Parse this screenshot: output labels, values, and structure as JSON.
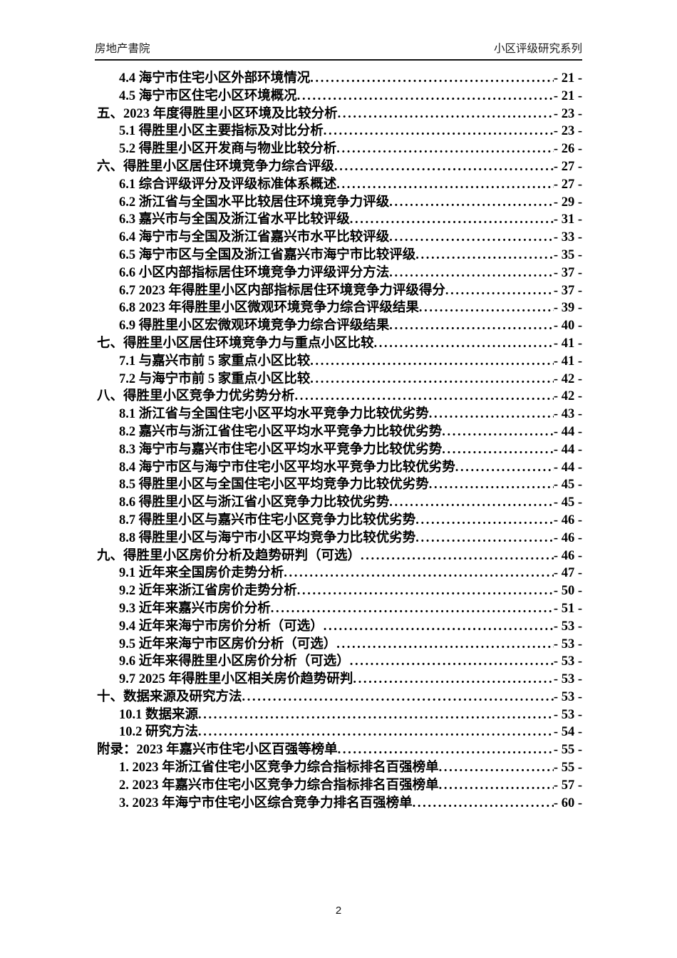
{
  "header": {
    "left": "房地产書院",
    "right": "小区评级研究系列"
  },
  "footer": {
    "page_number": "2"
  },
  "toc": {
    "entries": [
      {
        "level": 1,
        "label": "4.4 海宁市住宅小区外部环境情况",
        "page": "- 21 -"
      },
      {
        "level": 1,
        "label": "4.5 海宁市区住宅小区环境概况",
        "page": "- 21 -"
      },
      {
        "level": 0,
        "label": "五、2023 年度得胜里小区环境及比较分析",
        "page": "- 23 -"
      },
      {
        "level": 1,
        "label": "5.1 得胜里小区主要指标及对比分析",
        "page": "- 23 -"
      },
      {
        "level": 1,
        "label": "5.2 得胜里小区开发商与物业比较分析",
        "page": "- 26 -"
      },
      {
        "level": 0,
        "label": "六、得胜里小区居住环境竞争力综合评级",
        "page": "- 27 -"
      },
      {
        "level": 1,
        "label": "6.1 综合评级评分及评级标准体系概述",
        "page": "- 27 -"
      },
      {
        "level": 1,
        "label": "6.2 浙江省与全国水平比较居住环境竞争力评级",
        "page": "- 29 -"
      },
      {
        "level": 1,
        "label": "6.3 嘉兴市与全国及浙江省水平比较评级",
        "page": "- 31 -"
      },
      {
        "level": 1,
        "label": "6.4 海宁市与全国及浙江省嘉兴市水平比较评级",
        "page": "- 33 -"
      },
      {
        "level": 1,
        "label": "6.5 海宁市区与全国及浙江省嘉兴市海宁市比较评级",
        "page": "- 35 -"
      },
      {
        "level": 1,
        "label": "6.6 小区内部指标居住环境竞争力评级评分方法",
        "page": "- 37 -"
      },
      {
        "level": 1,
        "label": "6.7 2023 年得胜里小区内部指标居住环境竞争力评级得分",
        "page": "- 37 -"
      },
      {
        "level": 1,
        "label": "6.8 2023 年得胜里小区微观环境竞争力综合评级结果",
        "page": "- 39 -"
      },
      {
        "level": 1,
        "label": "6.9 得胜里小区宏微观环境竞争力综合评级结果",
        "page": "- 40 -"
      },
      {
        "level": 0,
        "label": "七、得胜里小区居住环境竞争力与重点小区比较",
        "page": "- 41 -"
      },
      {
        "level": 1,
        "label": "7.1 与嘉兴市前 5 家重点小区比较",
        "page": "- 41 -"
      },
      {
        "level": 1,
        "label": "7.2 与海宁市前 5 家重点小区比较",
        "page": "- 42 -"
      },
      {
        "level": 0,
        "label": "八、得胜里小区竞争力优劣势分析",
        "page": "- 42 -"
      },
      {
        "level": 1,
        "label": "8.1 浙江省与全国住宅小区平均水平竞争力比较优劣势",
        "page": "- 43 -"
      },
      {
        "level": 1,
        "label": "8.2 嘉兴市与浙江省住宅小区平均水平竞争力比较优劣势",
        "page": "- 44 -"
      },
      {
        "level": 1,
        "label": "8.3 海宁市与嘉兴市住宅小区平均水平竞争力比较优劣势",
        "page": "- 44 -"
      },
      {
        "level": 1,
        "label": "8.4 海宁市区与海宁市住宅小区平均水平竞争力比较优劣势",
        "page": "- 44 -"
      },
      {
        "level": 1,
        "label": "8.5 得胜里小区与全国住宅小区平均竞争力比较优劣势",
        "page": "- 45 -"
      },
      {
        "level": 1,
        "label": "8.6 得胜里小区与浙江省小区竞争力比较优劣势",
        "page": "- 45 -"
      },
      {
        "level": 1,
        "label": "8.7 得胜里小区与嘉兴市住宅小区竞争力比较优劣势",
        "page": "- 46 -"
      },
      {
        "level": 1,
        "label": "8.8 得胜里小区与海宁市小区平均竞争力比较优劣势",
        "page": "- 46 -"
      },
      {
        "level": 0,
        "label": "九、得胜里小区房价分析及趋势研判（可选）",
        "page": "- 46 -"
      },
      {
        "level": 1,
        "label": "9.1 近年来全国房价走势分析",
        "page": "- 47 -"
      },
      {
        "level": 1,
        "label": "9.2 近年来浙江省房价走势分析",
        "page": "- 50 -"
      },
      {
        "level": 1,
        "label": "9.3 近年来嘉兴市房价分析",
        "page": "- 51 -"
      },
      {
        "level": 1,
        "label": "9.4 近年来海宁市房价分析（可选）",
        "page": "- 53 -"
      },
      {
        "level": 1,
        "label": "9.5 近年来海宁市区房价分析（可选）",
        "page": "- 53 -"
      },
      {
        "level": 1,
        "label": "9.6 近年来得胜里小区房价分析（可选）",
        "page": "- 53 -"
      },
      {
        "level": 1,
        "label": "9.7 2025 年得胜里小区相关房价趋势研判",
        "page": "- 53 -"
      },
      {
        "level": 0,
        "label": "十、数据来源及研究方法",
        "page": "- 53 -"
      },
      {
        "level": 1,
        "label": "10.1 数据来源",
        "page": "- 53 -"
      },
      {
        "level": 1,
        "label": "10.2 研究方法",
        "page": "- 54 -"
      },
      {
        "level": 0,
        "label": "附录：2023 年嘉兴市住宅小区百强等榜单",
        "page": "- 55 -"
      },
      {
        "level": 1,
        "label": "1. 2023 年浙江省住宅小区竞争力综合指标排名百强榜单",
        "page": "- 55 -"
      },
      {
        "level": 1,
        "label": "2. 2023 年嘉兴市住宅小区竞争力综合指标排名百强榜单",
        "page": "- 57 -"
      },
      {
        "level": 1,
        "label": "3. 2023 年海宁市住宅小区综合竞争力排名百强榜单",
        "page": "- 60 -"
      }
    ]
  }
}
